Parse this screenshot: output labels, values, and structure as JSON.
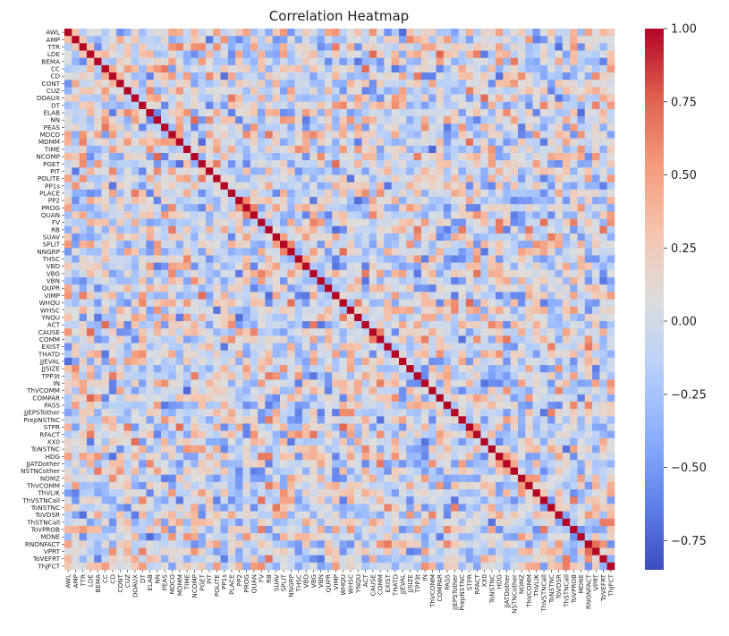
{
  "chart_data": {
    "type": "heatmap",
    "title": "Correlation Heatmap",
    "xlabel": "",
    "ylabel": "",
    "colormap": "coolwarm",
    "value_range": [
      -0.85,
      1.0
    ],
    "colorbar_ticks": [
      "1.00",
      "0.75",
      "0.50",
      "0.25",
      "0.00",
      "−0.25",
      "−0.50",
      "−0.75"
    ],
    "colorbar_tick_values": [
      1.0,
      0.75,
      0.5,
      0.25,
      0.0,
      -0.25,
      -0.5,
      -0.75
    ],
    "variables": [
      "AWL",
      "AMP",
      "TTR",
      "LDE",
      "BEMA",
      "CC",
      "CD",
      "CONT",
      "CUZ",
      "DOAUX",
      "DT",
      "ELAB",
      "NN",
      "PEAS",
      "MDCO",
      "MDMM",
      "TIME",
      "NCOMP",
      "PGET",
      "PIT",
      "POLITE",
      "PP1s",
      "PLACE",
      "PP2",
      "PROG",
      "QUAN",
      "FV",
      "RB",
      "SUAV",
      "SPLIT",
      "NNGRP",
      "THSC",
      "VBD",
      "VBG",
      "VBN",
      "QUPR",
      "VIMP",
      "WHQU",
      "WHSC",
      "YNQU",
      "ACT",
      "CAUSE",
      "COMM",
      "EXIST",
      "THATD",
      "JJEVAL",
      "JJSIZE",
      "TPP3t",
      "IN",
      "ThVCOMM",
      "COMPAR",
      "PASS",
      "JJEPSTother",
      "PrepNSTNC",
      "STPR",
      "RFACT",
      "XX0",
      "ToNSTNC",
      "HDG",
      "JJATDother",
      "NSTNCother",
      "NOMZ",
      "ThVCOMM",
      "ThVLIK",
      "ThVSTNCall",
      "ToNSTNC",
      "ToVDSR",
      "ThSTNCall",
      "ToVPROB",
      "MDNE",
      "RNONFACT",
      "VPRT",
      "ToVEFRT",
      "ThJFCT"
    ],
    "y_tick_labels": [
      "AWL",
      "AMP",
      "TTR",
      "LDE",
      "BEMA",
      "CC",
      "CD",
      "CONT",
      "CUZ",
      "DOAUX",
      "DT",
      "ELAB",
      "NN",
      "PEAS",
      "MDCO",
      "MDMM",
      "TIME",
      "NCOMP",
      "PGET",
      "PIT",
      "POLITE",
      "PP1s",
      "PLACE",
      "PP2",
      "PROG",
      "QUAN",
      "FV",
      "RB",
      "SUAV",
      "SPLIT",
      "NNGRP",
      "THSC",
      "VBD",
      "VBG",
      "VBN",
      "QUPR",
      "VIMP",
      "WHQU",
      "WHSC",
      "YNQU",
      "ACT",
      "CAUSE",
      "COMM",
      "EXIST",
      "THATD",
      "JJEVAL",
      "JJSIZE",
      "TPP3t",
      "IN",
      "ThVCOMM",
      "COMPAR",
      "PASS",
      "JJEPSTother",
      "PrepNSTNC",
      "STPR",
      "RFACT",
      "XX0",
      "ToNSTNC",
      "HDG",
      "JJATDother",
      "NSTNCother",
      "NOMZ",
      "ThVCOMM",
      "ThVLIK",
      "ThVSTNCall",
      "ToNSTNC",
      "ToVDSR",
      "ThSTNCall",
      "ToVPROB",
      "MDNE",
      "RNONFACT",
      "VPRT",
      "ToVEFRT",
      "ThJFCT"
    ],
    "x_tick_labels": [
      "AWL",
      "AMP",
      "TTR",
      "LDE",
      "BEMA",
      "CC",
      "CD",
      "CONT",
      "CUZ",
      "DOAUX",
      "DT",
      "ELAB",
      "NN",
      "PEAS",
      "MDCO",
      "MDMM",
      "TIME",
      "NCOMP",
      "PGET",
      "PIT",
      "POLITE",
      "PP1s",
      "PLACE",
      "PP2",
      "PROG",
      "QUAN",
      "FV",
      "RB",
      "SUAV",
      "SPLIT",
      "NNGRP",
      "THSC",
      "VBD",
      "VBG",
      "VBN",
      "QUPR",
      "VIMP",
      "WHQU",
      "WHSC",
      "YNQU",
      "ACT",
      "CAUSE",
      "COMM",
      "EXIST",
      "THATD",
      "JJEVAL",
      "JJSIZE",
      "TPP3t",
      "IN",
      "ThVCOMM",
      "COMPAR",
      "PASS",
      "JJEPSTother",
      "PrepNSTNC",
      "STPR",
      "RFACT",
      "XX0",
      "ToNSTNC",
      "HDG",
      "JJATDother",
      "NSTNCother",
      "NOMZ",
      "ThVCOMM",
      "ThVLIK",
      "ThVSTNCall",
      "ToNSTNC",
      "ToVDSR",
      "ThSTNCall",
      "ToVPROB",
      "MDNE",
      "RNONFACT",
      "VPRT",
      "ToVEFRT",
      "ThJFCT"
    ],
    "diagonal_value": 1.0,
    "off_diagonal_values": "mostly between -0.8 and 0.7; individual cell values are not legible at this resolution"
  }
}
